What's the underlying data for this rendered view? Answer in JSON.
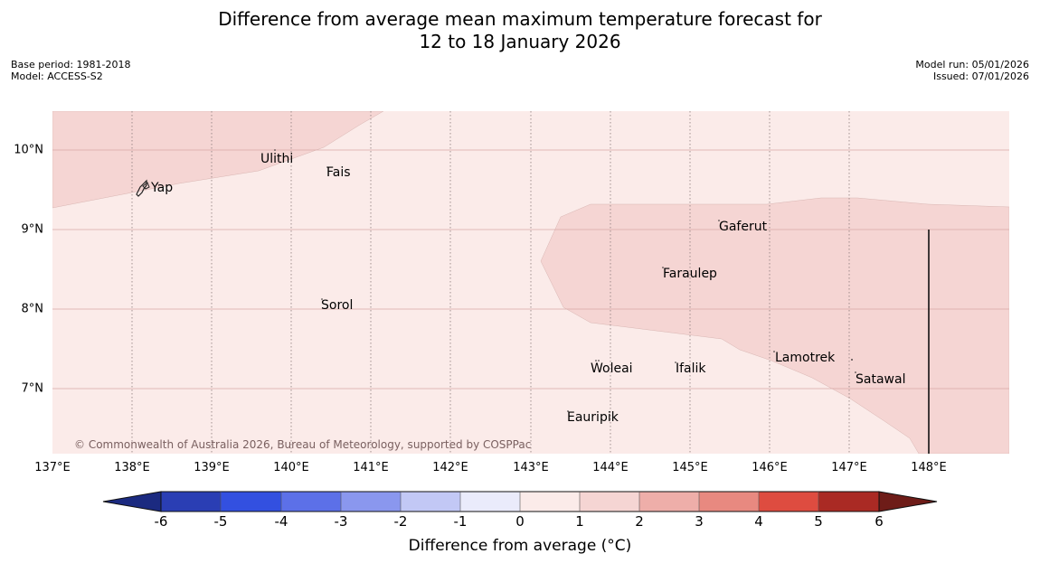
{
  "title": {
    "line1": "Difference from average mean maximum temperature forecast for",
    "line2": "12 to 18 January 2026"
  },
  "meta": {
    "base_period": "Base period: 1981-2018",
    "model": "Model: ACCESS-S2",
    "model_run": "Model run: 05/01/2026",
    "issued": "Issued: 07/01/2026"
  },
  "axes": {
    "lat_labels": [
      "10°N",
      "9°N",
      "8°N",
      "7°N"
    ],
    "lon_labels": [
      "137°E",
      "138°E",
      "139°E",
      "140°E",
      "141°E",
      "142°E",
      "143°E",
      "144°E",
      "145°E",
      "146°E",
      "147°E",
      "148°E"
    ]
  },
  "places": [
    "Ulithi",
    "Fais",
    "Yap",
    "Gaferut",
    "Faraulep",
    "Sorol",
    "Lamotrek",
    "Woleai",
    "Ifalik",
    "Satawal",
    "Eauripik"
  ],
  "copyright": "© Commonwealth of Australia 2026, Bureau of Meteorology, supported by COSPPac",
  "colorbar": {
    "ticks": [
      "-6",
      "-5",
      "-4",
      "-3",
      "-2",
      "-1",
      "0",
      "1",
      "2",
      "3",
      "4",
      "5",
      "6"
    ],
    "label": "Difference from average (°C)",
    "colors": {
      "below": "#1b2a80",
      "bins": [
        "#2a3eb4",
        "#3350e0",
        "#5c70e8",
        "#8a97ee",
        "#c2c8f5",
        "#eaebfb",
        "#fbebe9",
        "#f5d5d3",
        "#eeaea9",
        "#e88980",
        "#de4c40",
        "#aa2a24"
      ],
      "above": "#6e1c18"
    }
  },
  "map_colors": {
    "light": "#fbebe9",
    "medium": "#f5d5d3",
    "land": "#222222"
  }
}
